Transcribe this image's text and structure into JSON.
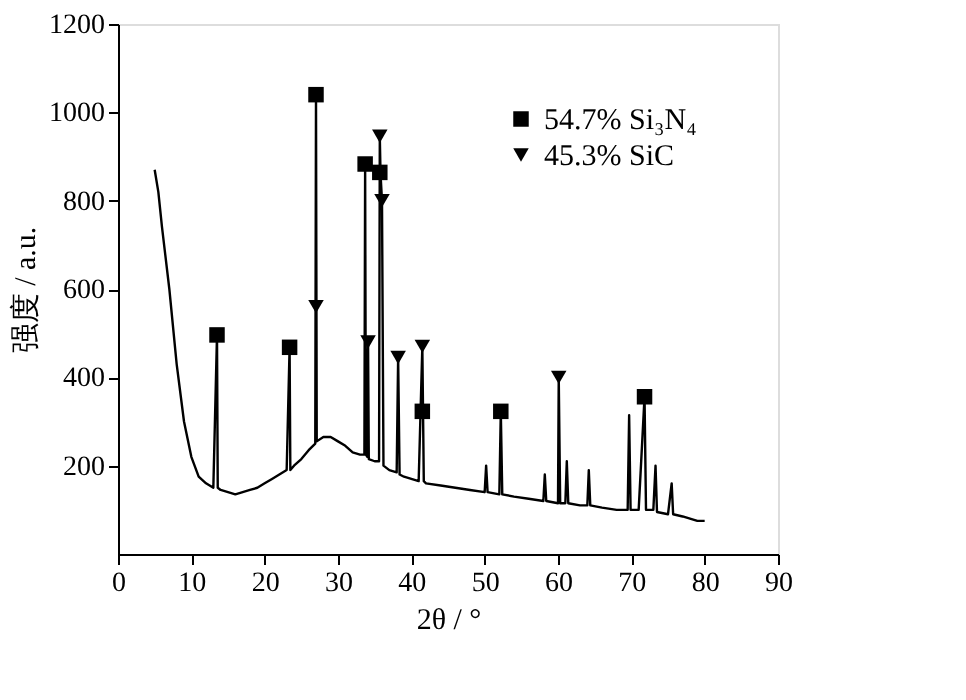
{
  "chart_data": {
    "type": "line",
    "xlabel": "2θ / °",
    "ylabel": "强度 / a.u.",
    "xlim": [
      0,
      90
    ],
    "xticks": [
      0,
      10,
      20,
      30,
      40,
      50,
      60,
      70,
      80,
      90
    ],
    "ylim": [
      0,
      1200
    ],
    "yticks": [
      200,
      400,
      600,
      800,
      1000,
      1200
    ],
    "grid": false,
    "legend": "top right",
    "series": [
      {
        "color": "#000000",
        "marker": "none",
        "line_style": "solid",
        "x": [
          5,
          5.5,
          6,
          7,
          8,
          9,
          10,
          11,
          12,
          13,
          13.5,
          13.6,
          14,
          15,
          16,
          17,
          18,
          19,
          20,
          21,
          22,
          23,
          23.4,
          23.5,
          24,
          25,
          26,
          26.9,
          27,
          27.1,
          28,
          29,
          30,
          31,
          32,
          33,
          33.6,
          33.7,
          33.8,
          34.0,
          34.1,
          34.2,
          35,
          35.6,
          35.7,
          35.8,
          36,
          36.2,
          37,
          38,
          38.2,
          38.4,
          39,
          40,
          41,
          41.5,
          41.7,
          42,
          44,
          46,
          48,
          50,
          50.2,
          50.4,
          52,
          52.2,
          52.4,
          54,
          56,
          58,
          58.2,
          58.4,
          60,
          60.1,
          60.3,
          61,
          61.2,
          61.4,
          63,
          64,
          64.2,
          64.4,
          66,
          68,
          69.5,
          69.7,
          69.9,
          71,
          71.8,
          72,
          73,
          73.3,
          73.5,
          75,
          75.5,
          75.7,
          77,
          79,
          80
        ],
        "values": [
          870,
          820,
          740,
          600,
          430,
          300,
          220,
          175,
          160,
          150,
          496,
          150,
          145,
          140,
          135,
          140,
          145,
          150,
          160,
          170,
          180,
          190,
          468,
          190,
          200,
          215,
          235,
          250,
          1040,
          255,
          265,
          265,
          255,
          245,
          230,
          225,
          225,
          883,
          225,
          220,
          480,
          215,
          210,
          210,
          946,
          860,
          800,
          200,
          190,
          185,
          445,
          180,
          175,
          170,
          165,
          470,
          165,
          160,
          155,
          150,
          145,
          140,
          200,
          140,
          135,
          323,
          135,
          130,
          125,
          120,
          180,
          120,
          115,
          400,
          115,
          115,
          210,
          115,
          110,
          110,
          190,
          110,
          105,
          100,
          100,
          314,
          100,
          100,
          356,
          100,
          100,
          200,
          95,
          90,
          160,
          90,
          85,
          75,
          75
        ]
      },
      {
        "type": "scatter",
        "name": "54.7% Si₃N₄",
        "color": "#000000",
        "marker": "square",
        "x": [
          13.5,
          23.4,
          27.0,
          33.7,
          35.7,
          41.5,
          52.2,
          71.8
        ],
        "values": [
          496,
          468,
          1040,
          883,
          864,
          323,
          323,
          356
        ]
      },
      {
        "type": "scatter",
        "name": "45.3% SiC",
        "color": "#000000",
        "marker": "triangle",
        "x": [
          27.0,
          34.1,
          35.7,
          36.0,
          38.2,
          41.5,
          60.1
        ],
        "values": [
          560,
          480,
          946,
          800,
          445,
          470,
          400
        ]
      }
    ]
  }
}
